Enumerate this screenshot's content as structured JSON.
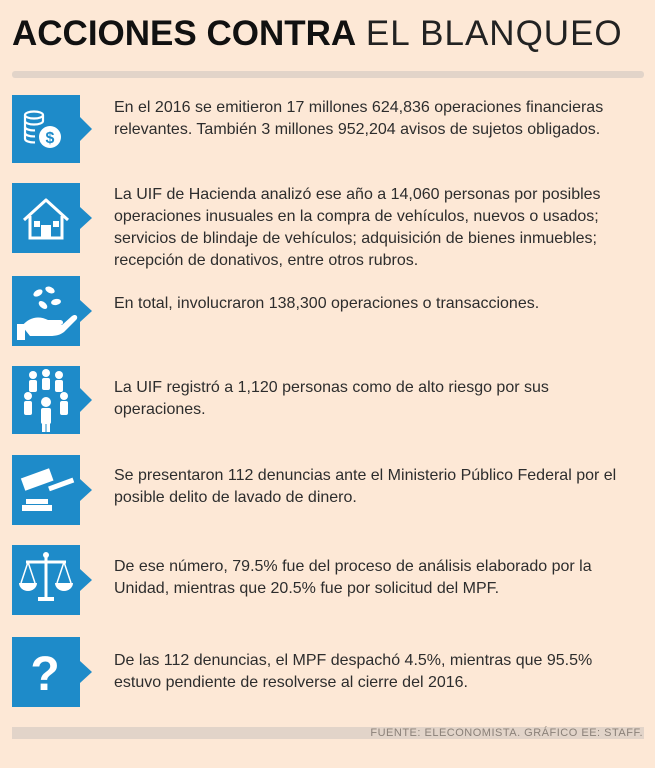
{
  "title": {
    "bold": "ACCIONES CONTRA",
    "light": "EL BLANQUEO"
  },
  "colors": {
    "background": "#fde8d6",
    "accent": "#1e8bc9",
    "rule": "#e2d4c9"
  },
  "items": [
    {
      "icon": "coins-dollar-icon",
      "text": "En el 2016 se emitieron 17 millones 624,836 operaciones financieras relevantes. También 3 millones 952,204 avisos de sujetos obligados."
    },
    {
      "icon": "house-icon",
      "text": "La UIF de Hacienda analizó ese año a 14,060 personas por posibles operaciones inusuales en la compra de vehículos, nuevos o usados; servicios de blindaje de vehículos; adquisición de bienes inmuebles; recepción de donativos, entre otros rubros."
    },
    {
      "icon": "hand-coins-icon",
      "text": "En total, involucraron 138,300 operaciones o transacciones."
    },
    {
      "icon": "people-icon",
      "text": "La UIF registró a 1,120 personas como de alto riesgo por sus operaciones."
    },
    {
      "icon": "gavel-icon",
      "text": "Se presentaron 112 denuncias ante el Ministerio Público Federal por el posible delito de lavado de dinero."
    },
    {
      "icon": "scales-icon",
      "text": "De ese número, 79.5% fue del proceso de análisis elaborado por la Unidad, mientras que 20.5% fue por solicitud del MPF."
    },
    {
      "icon": "question-icon",
      "text": "De las 112 denuncias, el MPF despachó 4.5%, mientras que 95.5% estuvo pendiente de resolverse al cierre del 2016."
    }
  ],
  "source": "FUENTE: ELECONOMISTA. GRÁFICO EE: STAFF."
}
